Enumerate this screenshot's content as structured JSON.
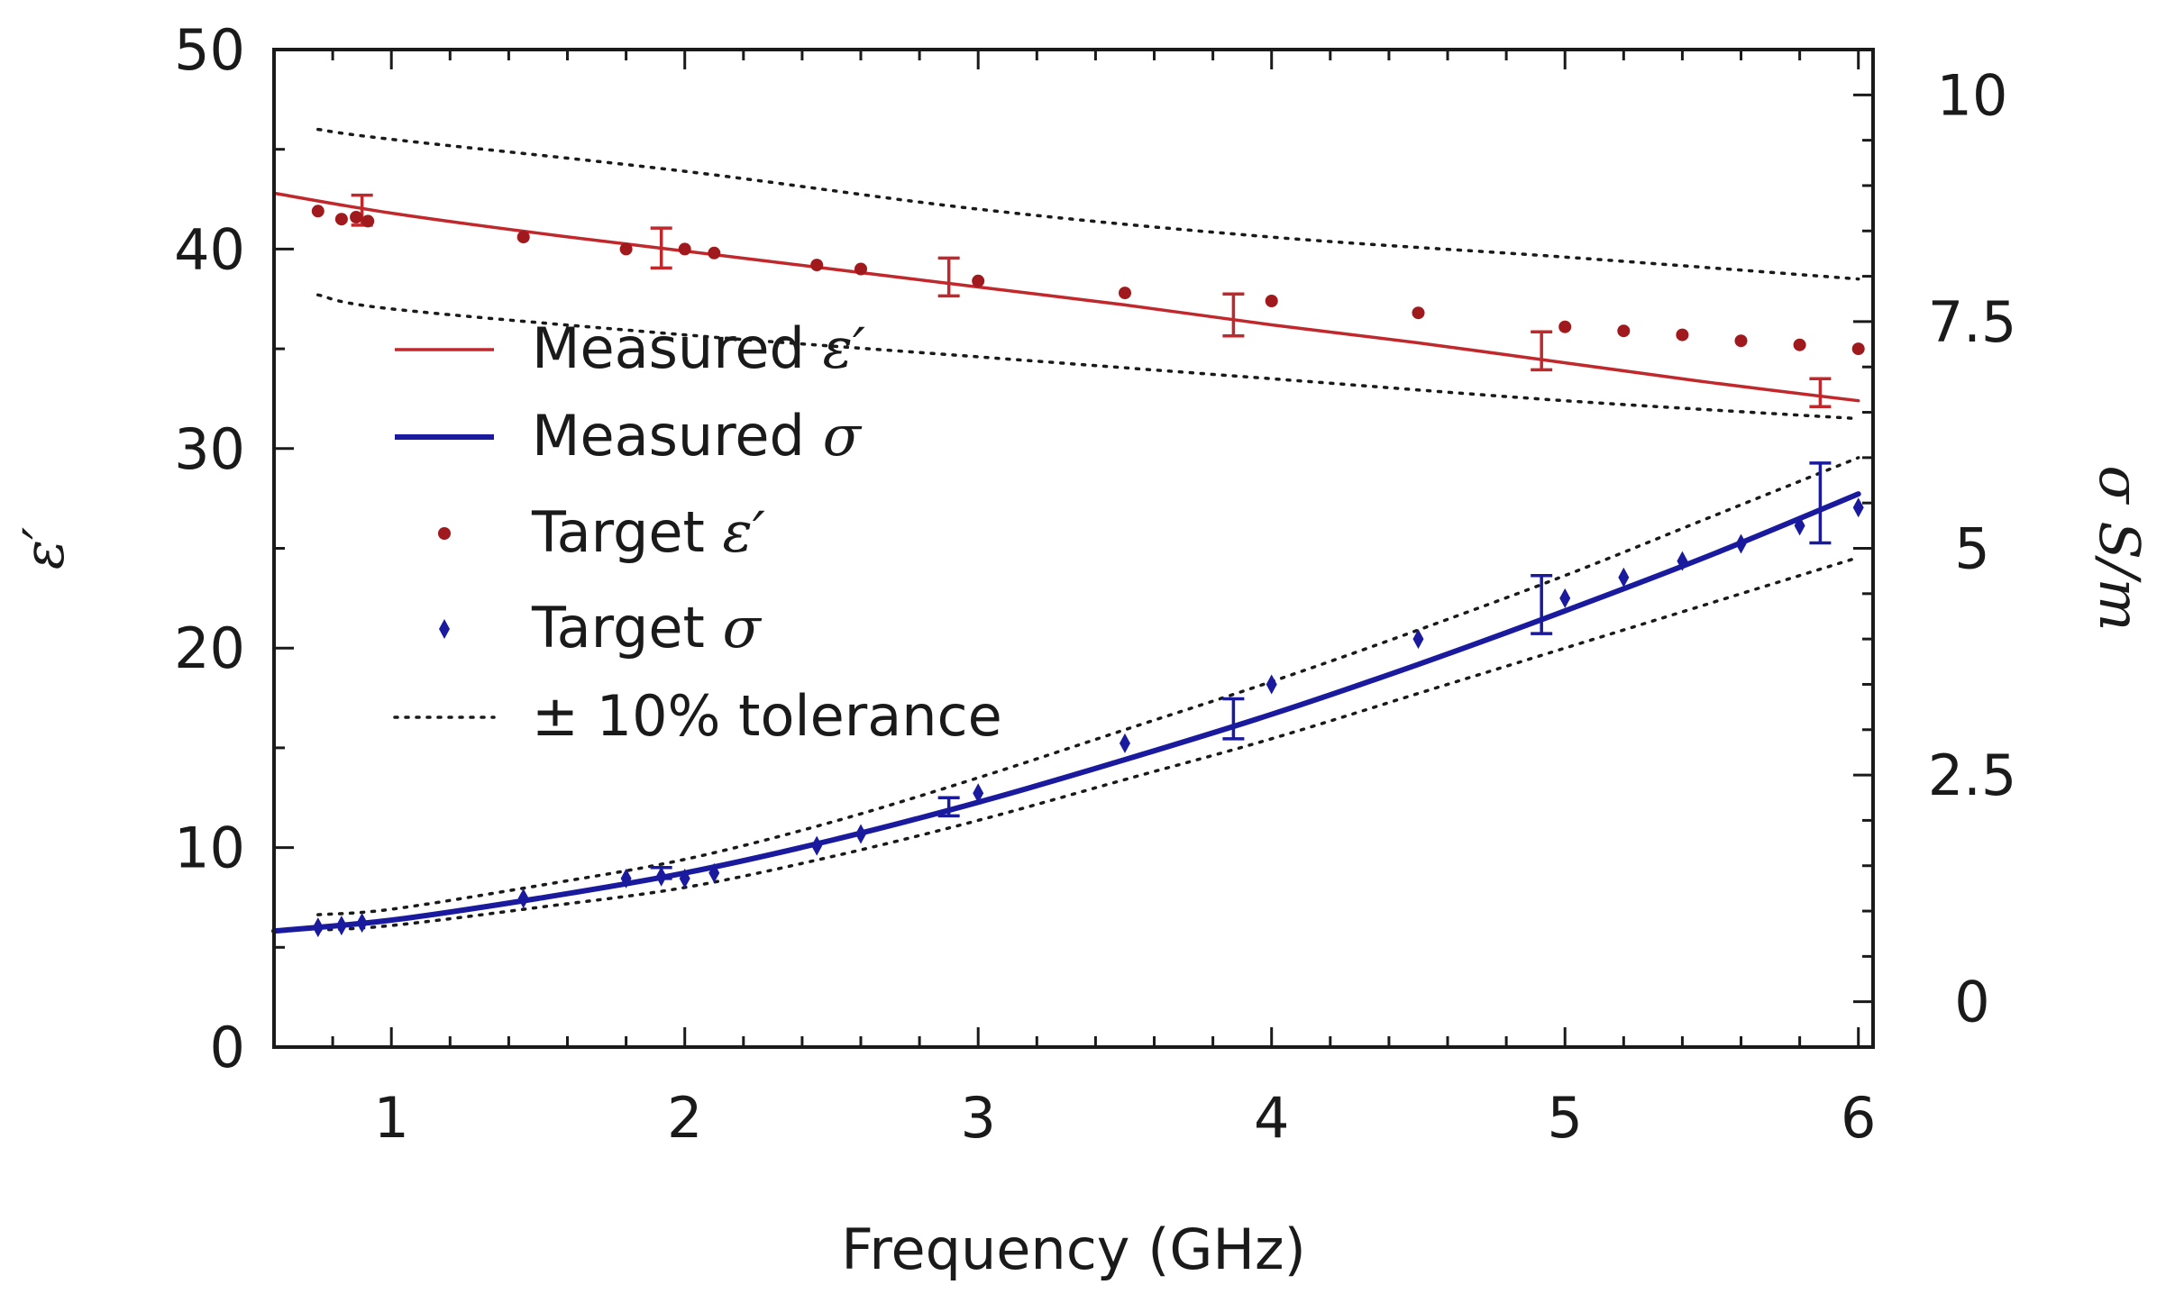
{
  "chart_data": {
    "type": "line",
    "xlabel": "Frequency (GHz)",
    "ylabel": "ε′",
    "y2label": "σ S/m",
    "xlim": [
      0.6,
      6.05
    ],
    "ylim": [
      0,
      50
    ],
    "y2lim": [
      -0.5,
      10.5
    ],
    "x_ticks": [
      1,
      2,
      3,
      4,
      5,
      6
    ],
    "y_ticks": [
      0,
      10,
      20,
      30,
      40,
      50
    ],
    "y2_ticks": [
      0,
      2.5,
      5,
      7.5,
      10
    ],
    "x_tick_labels": [
      "1",
      "2",
      "3",
      "4",
      "5",
      "6"
    ],
    "y_tick_labels": [
      "0",
      "10",
      "20",
      "30",
      "40",
      "50"
    ],
    "y2_tick_labels": [
      "0",
      "2.5",
      "5",
      "7.5",
      "10"
    ],
    "legend_position": "left-middle",
    "legend": [
      {
        "label": "Measured ",
        "symbol": "ε′",
        "style": "line",
        "color": "#c0282c"
      },
      {
        "label": "Measured ",
        "symbol": "σ",
        "style": "line",
        "color": "#1a1a9e"
      },
      {
        "label": "Target ",
        "symbol": "ε′",
        "style": "dot",
        "color": "#a0191d"
      },
      {
        "label": "Target ",
        "symbol": "σ",
        "style": "diamond",
        "color": "#1a1a9e"
      },
      {
        "label": "± 10% tolerance",
        "symbol": "",
        "style": "dotted",
        "color": "#1a1a1a"
      }
    ],
    "series": [
      {
        "name": "Measured ε′",
        "axis": "left",
        "kind": "line",
        "color": "#c0282c",
        "x": [
          0.6,
          1.0,
          1.5,
          2.0,
          2.5,
          3.0,
          3.5,
          4.0,
          4.5,
          5.0,
          5.5,
          6.0
        ],
        "y": [
          42.8,
          41.8,
          40.8,
          39.9,
          39.0,
          38.1,
          37.2,
          36.2,
          35.3,
          34.3,
          33.3,
          32.4
        ]
      },
      {
        "name": "Measured σ",
        "axis": "right",
        "kind": "line",
        "color": "#1a1a9e",
        "x": [
          0.6,
          1.0,
          1.5,
          2.0,
          2.5,
          3.0,
          3.5,
          4.0,
          4.5,
          5.0,
          5.5,
          6.0
        ],
        "y": [
          0.78,
          0.9,
          1.14,
          1.42,
          1.78,
          2.2,
          2.67,
          3.17,
          3.72,
          4.31,
          4.93,
          5.6
        ]
      },
      {
        "name": "Target ε′",
        "axis": "left",
        "kind": "dot",
        "color": "#a0191d",
        "x": [
          0.75,
          0.83,
          0.88,
          0.92,
          1.45,
          1.8,
          2.0,
          2.1,
          2.45,
          2.6,
          3.0,
          3.5,
          4.0,
          4.5,
          5.0,
          5.2,
          5.4,
          5.6,
          5.8,
          6.0
        ],
        "y": [
          41.9,
          41.5,
          41.6,
          41.4,
          40.6,
          40.0,
          40.0,
          39.8,
          39.2,
          39.0,
          38.4,
          37.8,
          37.4,
          36.8,
          36.1,
          35.9,
          35.7,
          35.4,
          35.2,
          35.0
        ]
      },
      {
        "name": "Target σ",
        "axis": "right",
        "kind": "diamond",
        "color": "#1a1a9e",
        "x": [
          0.75,
          0.83,
          0.9,
          1.45,
          1.8,
          1.92,
          2.0,
          2.1,
          2.45,
          2.6,
          3.0,
          3.5,
          4.0,
          4.5,
          5.0,
          5.2,
          5.4,
          5.6,
          5.8,
          6.0
        ],
        "y": [
          0.82,
          0.84,
          0.87,
          1.14,
          1.36,
          1.38,
          1.36,
          1.42,
          1.72,
          1.85,
          2.3,
          2.85,
          3.5,
          4.0,
          4.45,
          4.68,
          4.86,
          5.05,
          5.25,
          5.45
        ]
      },
      {
        "name": "ε′ +10%",
        "axis": "left",
        "kind": "dotted",
        "color": "#1a1a1a",
        "x": [
          0.75,
          1.0,
          2.0,
          3.0,
          4.0,
          5.0,
          6.0
        ],
        "y": [
          46.0,
          45.5,
          43.9,
          42.0,
          40.6,
          39.6,
          38.5
        ]
      },
      {
        "name": "ε′ −10%",
        "axis": "left",
        "kind": "dotted",
        "color": "#1a1a1a",
        "x": [
          0.75,
          1.0,
          2.0,
          3.0,
          4.0,
          5.0,
          6.0
        ],
        "y": [
          37.7,
          37.0,
          35.7,
          34.6,
          33.5,
          32.4,
          31.5
        ]
      },
      {
        "name": "σ +10%",
        "axis": "right",
        "kind": "dotted",
        "color": "#1a1a1a",
        "x": [
          0.75,
          1.0,
          1.5,
          2.0,
          2.5,
          3.0,
          3.5,
          4.0,
          4.5,
          5.0,
          5.5,
          6.0
        ],
        "y": [
          0.96,
          1.02,
          1.28,
          1.57,
          1.98,
          2.47,
          3.0,
          3.53,
          4.1,
          4.7,
          5.35,
          6.0
        ]
      },
      {
        "name": "σ −10%",
        "axis": "right",
        "kind": "dotted",
        "color": "#1a1a1a",
        "x": [
          0.75,
          1.0,
          1.5,
          2.0,
          2.5,
          3.0,
          3.5,
          4.0,
          4.5,
          5.0,
          5.5,
          6.0
        ],
        "y": [
          0.79,
          0.84,
          1.04,
          1.26,
          1.6,
          2.0,
          2.45,
          2.9,
          3.4,
          3.9,
          4.4,
          4.9
        ]
      }
    ],
    "error_bars": [
      {
        "series": "Measured ε′",
        "axis": "left",
        "color": "#c0282c",
        "x": [
          0.9,
          1.92,
          2.9,
          3.87,
          4.92,
          5.87
        ],
        "y": [
          41.95,
          40.05,
          38.6,
          36.7,
          34.9,
          32.8
        ],
        "err": [
          0.75,
          1.0,
          0.95,
          1.05,
          0.95,
          0.7
        ]
      },
      {
        "series": "Measured σ",
        "axis": "right",
        "color": "#1a1a9e",
        "x": [
          1.92,
          2.9,
          3.87,
          4.92,
          5.87
        ],
        "y": [
          1.42,
          2.15,
          3.12,
          4.38,
          5.5
        ],
        "err": [
          0.06,
          0.1,
          0.22,
          0.32,
          0.44
        ]
      }
    ]
  }
}
